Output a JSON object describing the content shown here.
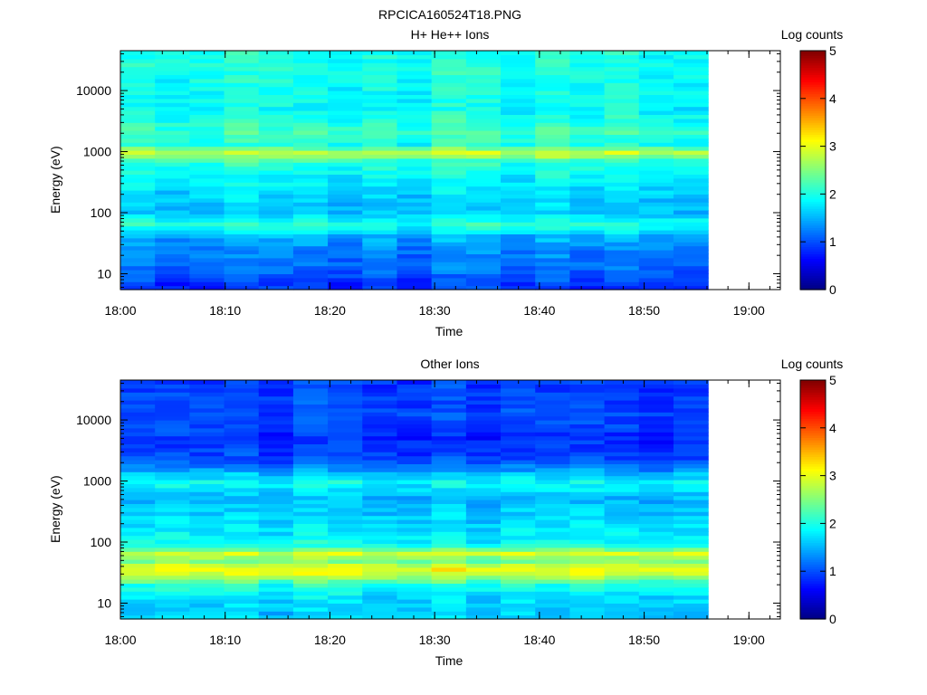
{
  "figure_title": "RPCICA160524T18.PNG",
  "colors": {
    "missing_data": "#ffffff",
    "frame": "#000000"
  },
  "chart_data": [
    {
      "type": "heatmap",
      "title": "H+ He++ Ions",
      "xlabel": "Time",
      "ylabel": "Energy (eV)",
      "yscale": "log",
      "xlim": [
        "18:00",
        "19:03"
      ],
      "ylim": [
        5.5,
        45000
      ],
      "x_ticks": [
        "18:00",
        "18:10",
        "18:20",
        "18:30",
        "18:40",
        "18:50",
        "19:00"
      ],
      "y_ticks": [
        "10",
        "100",
        "1000",
        "10000"
      ],
      "colorbar": {
        "label": "Log counts",
        "range": [
          0,
          5
        ],
        "ticks": [
          "0",
          "1",
          "2",
          "3",
          "4",
          "5"
        ]
      },
      "data_gaps": [
        [
          "18:54.5",
          "18:57.8"
        ],
        [
          "19:00.8",
          "19:03"
        ]
      ],
      "spectrum_profile": [
        {
          "energy_ev": 7,
          "log_counts": 0.9
        },
        {
          "energy_ev": 10,
          "log_counts": 1.1
        },
        {
          "energy_ev": 15,
          "log_counts": 1.2
        },
        {
          "energy_ev": 25,
          "log_counts": 1.3
        },
        {
          "energy_ev": 40,
          "log_counts": 1.5
        },
        {
          "energy_ev": 65,
          "log_counts": 2.1
        },
        {
          "energy_ev": 100,
          "log_counts": 1.6
        },
        {
          "energy_ev": 200,
          "log_counts": 1.7
        },
        {
          "energy_ev": 400,
          "log_counts": 1.9
        },
        {
          "energy_ev": 700,
          "log_counts": 2.1
        },
        {
          "energy_ev": 950,
          "log_counts": 2.95
        },
        {
          "energy_ev": 1300,
          "log_counts": 2.0
        },
        {
          "energy_ev": 2000,
          "log_counts": 2.2
        },
        {
          "energy_ev": 5000,
          "log_counts": 1.9
        },
        {
          "energy_ev": 20000,
          "log_counts": 2.0
        },
        {
          "energy_ev": 45000,
          "log_counts": 2.0
        }
      ]
    },
    {
      "type": "heatmap",
      "title": "Other Ions",
      "xlabel": "Time",
      "ylabel": "Energy (eV)",
      "yscale": "log",
      "xlim": [
        "18:00",
        "19:03"
      ],
      "ylim": [
        5.5,
        45000
      ],
      "x_ticks": [
        "18:00",
        "18:10",
        "18:20",
        "18:30",
        "18:40",
        "18:50",
        "19:00"
      ],
      "y_ticks": [
        "10",
        "100",
        "1000",
        "10000"
      ],
      "colorbar": {
        "label": "Log counts",
        "range": [
          0,
          5
        ],
        "ticks": [
          "0",
          "1",
          "2",
          "3",
          "4",
          "5"
        ]
      },
      "data_gaps": [
        [
          "18:54.5",
          "18:57.8"
        ],
        [
          "19:00.8",
          "19:03"
        ]
      ],
      "spectrum_profile": [
        {
          "energy_ev": 7,
          "log_counts": 1.6
        },
        {
          "energy_ev": 12,
          "log_counts": 1.7
        },
        {
          "energy_ev": 20,
          "log_counts": 2.0
        },
        {
          "energy_ev": 28,
          "log_counts": 2.8
        },
        {
          "energy_ev": 37,
          "log_counts": 3.1
        },
        {
          "energy_ev": 50,
          "log_counts": 2.4
        },
        {
          "energy_ev": 65,
          "log_counts": 2.9
        },
        {
          "energy_ev": 90,
          "log_counts": 1.9
        },
        {
          "energy_ev": 200,
          "log_counts": 1.7
        },
        {
          "energy_ev": 500,
          "log_counts": 1.5
        },
        {
          "energy_ev": 1000,
          "log_counts": 1.9
        },
        {
          "energy_ev": 2000,
          "log_counts": 1.0
        },
        {
          "energy_ev": 5000,
          "log_counts": 0.8
        },
        {
          "energy_ev": 10000,
          "log_counts": 1.0
        },
        {
          "energy_ev": 45000,
          "log_counts": 0.9
        }
      ]
    }
  ]
}
